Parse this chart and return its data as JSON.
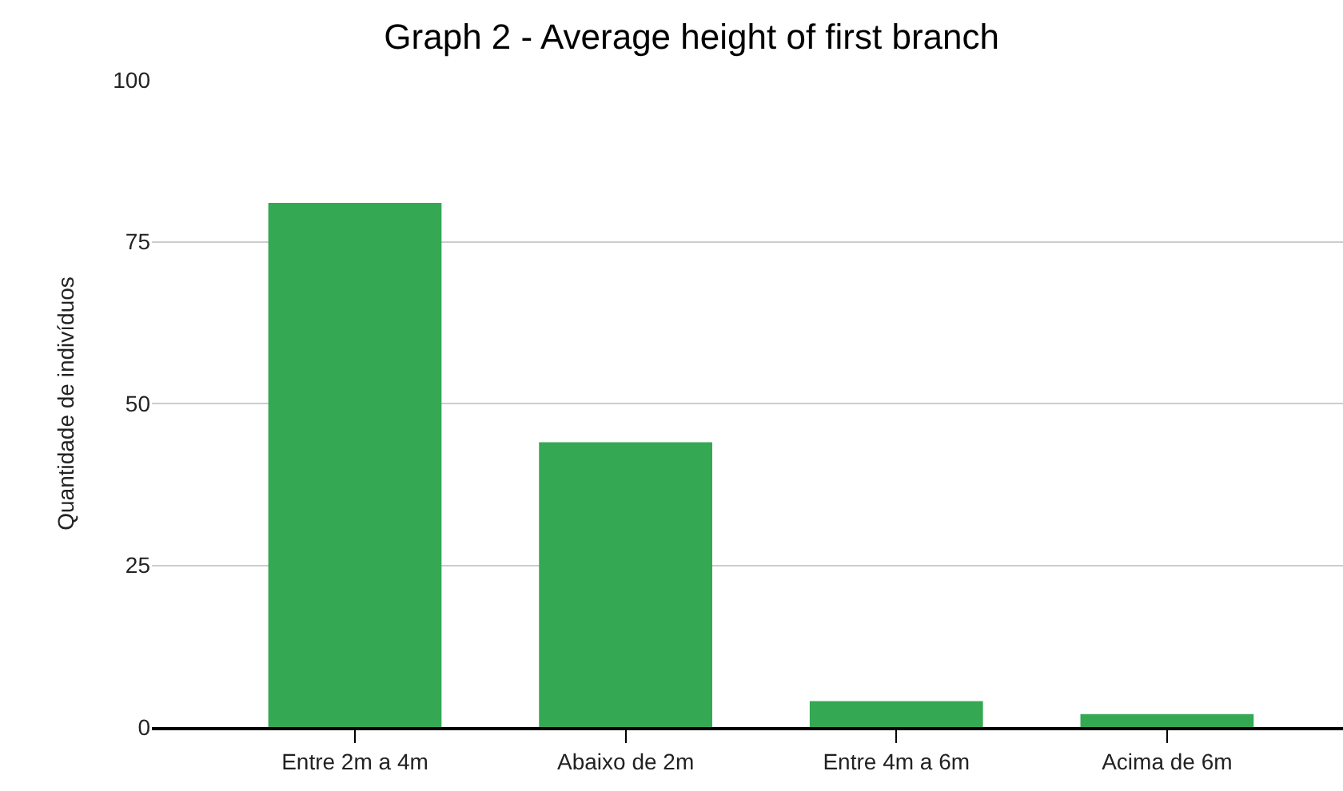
{
  "chart_data": {
    "type": "bar",
    "title": "Graph 2 - Average height of first branch",
    "ylabel": "Quantidade de indivíduos",
    "categories": [
      "Entre 2m a 4m",
      "Abaixo de 2m",
      "Entre 4m a 6m",
      "Acima de 6m"
    ],
    "series": [
      {
        "color": "#34a853",
        "values": [
          81,
          44,
          4,
          2
        ]
      }
    ],
    "ylim": [
      0,
      100
    ],
    "yticks": [
      0,
      25,
      50,
      75,
      100
    ],
    "grid": "y"
  }
}
